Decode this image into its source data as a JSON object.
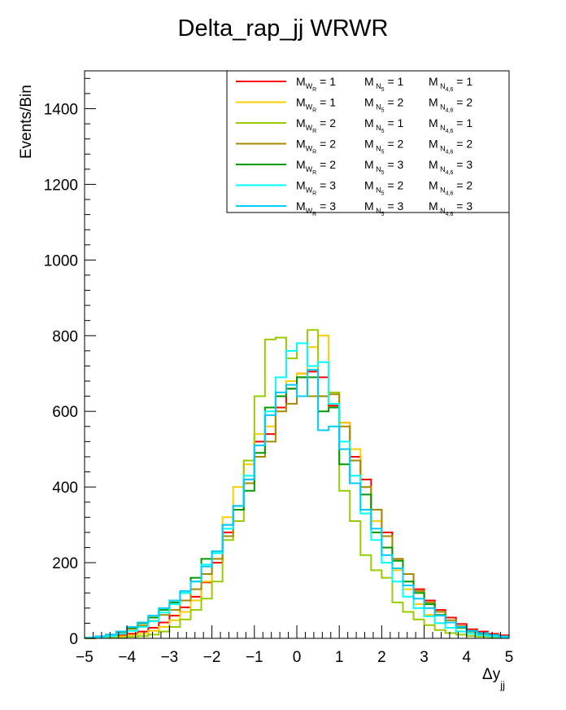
{
  "chart_data": {
    "type": "histogram-step",
    "title": "Delta_rap_jj WRWR",
    "xlabel": "Δy",
    "xlabel_sub": "jj",
    "ylabel": "Events/Bin",
    "xlim": [
      -5,
      5
    ],
    "ylim": [
      0,
      1500
    ],
    "x_ticks": [
      -5,
      -4,
      -3,
      -2,
      -1,
      0,
      1,
      2,
      3,
      4,
      5
    ],
    "x_tick_labels": [
      "−5",
      "−4",
      "−3",
      "−2",
      "−1",
      "0",
      "1",
      "2",
      "3",
      "4",
      "5"
    ],
    "y_ticks": [
      0,
      200,
      400,
      600,
      800,
      1000,
      1200,
      1400
    ],
    "y_tick_labels": [
      "0",
      "200",
      "400",
      "600",
      "800",
      "1000",
      "1200",
      "1400"
    ],
    "bin_width": 0.25,
    "legend": {
      "placement": "top-right"
    },
    "series": [
      {
        "name": "M_WR = 1  M_N5 = 1  M_N46 = 1",
        "color": "#ff0000",
        "legend": {
          "wr": "1",
          "n5": "1",
          "n46": "1"
        },
        "values": [
          0,
          2,
          4,
          8,
          12,
          18,
          28,
          42,
          60,
          82,
          110,
          148,
          200,
          280,
          350,
          420,
          520,
          540,
          610,
          660,
          700,
          705,
          690,
          615,
          570,
          480,
          420,
          340,
          280,
          210,
          170,
          130,
          100,
          75,
          55,
          38,
          24,
          18,
          12,
          8
        ]
      },
      {
        "name": "M_WR = 1  M_N5 = 2  M_N46 = 2",
        "color": "#ffcc00",
        "legend": {
          "wr": "1",
          "n5": "2",
          "n46": "2"
        },
        "values": [
          0,
          1,
          2,
          5,
          8,
          12,
          20,
          30,
          48,
          70,
          100,
          150,
          210,
          320,
          400,
          460,
          540,
          560,
          640,
          680,
          700,
          770,
          800,
          620,
          570,
          500,
          400,
          310,
          240,
          180,
          130,
          90,
          62,
          40,
          28,
          18,
          12,
          8,
          5,
          3
        ]
      },
      {
        "name": "M_WR = 2  M_N5 = 1  M_N46 = 1",
        "color": "#99cc00",
        "legend": {
          "wr": "2",
          "n5": "1",
          "n46": "1"
        },
        "values": [
          0,
          1,
          1,
          2,
          4,
          6,
          10,
          18,
          30,
          50,
          75,
          105,
          150,
          260,
          310,
          470,
          640,
          790,
          795,
          740,
          780,
          815,
          640,
          650,
          390,
          310,
          220,
          180,
          160,
          95,
          70,
          50,
          35,
          22,
          14,
          10,
          6,
          4,
          2,
          1
        ]
      },
      {
        "name": "M_WR = 2  M_N5 = 2  M_N46 = 2",
        "color": "#a68a00",
        "legend": {
          "wr": "2",
          "n5": "2",
          "n46": "2"
        },
        "values": [
          0,
          3,
          8,
          15,
          25,
          34,
          46,
          62,
          75,
          100,
          130,
          170,
          210,
          270,
          340,
          410,
          480,
          520,
          600,
          620,
          690,
          640,
          640,
          645,
          560,
          470,
          400,
          340,
          270,
          210,
          170,
          125,
          95,
          70,
          48,
          32,
          20,
          14,
          9,
          5
        ]
      },
      {
        "name": "M_WR = 2  M_N5 = 3  M_N46 = 3",
        "color": "#009900",
        "legend": {
          "wr": "2",
          "n5": "3",
          "n46": "3"
        },
        "values": [
          2,
          5,
          10,
          18,
          28,
          40,
          55,
          75,
          95,
          120,
          160,
          210,
          230,
          300,
          340,
          390,
          490,
          610,
          640,
          660,
          690,
          690,
          600,
          610,
          460,
          410,
          380,
          280,
          240,
          205,
          150,
          120,
          90,
          62,
          42,
          28,
          18,
          12,
          8,
          4
        ]
      },
      {
        "name": "M_WR = 3  M_N5 = 2  M_N46 = 2",
        "color": "#00ffff",
        "legend": {
          "wr": "3",
          "n5": "2",
          "n46": "2"
        },
        "values": [
          1,
          3,
          6,
          12,
          20,
          30,
          45,
          68,
          90,
          120,
          150,
          195,
          225,
          290,
          350,
          430,
          510,
          600,
          690,
          760,
          780,
          720,
          730,
          620,
          520,
          430,
          330,
          260,
          200,
          150,
          110,
          80,
          58,
          40,
          28,
          18,
          12,
          8,
          5,
          3
        ]
      },
      {
        "name": "M_WR = 3  M_N5 = 3  M_N46 = 3",
        "color": "#00ccff",
        "legend": {
          "wr": "3",
          "n5": "3",
          "n46": "3"
        },
        "values": [
          2,
          5,
          10,
          18,
          30,
          42,
          60,
          80,
          100,
          125,
          150,
          190,
          230,
          300,
          350,
          420,
          510,
          590,
          650,
          670,
          640,
          710,
          550,
          560,
          500,
          410,
          340,
          290,
          220,
          185,
          140,
          105,
          80,
          60,
          42,
          30,
          20,
          14,
          9,
          5
        ]
      }
    ]
  }
}
